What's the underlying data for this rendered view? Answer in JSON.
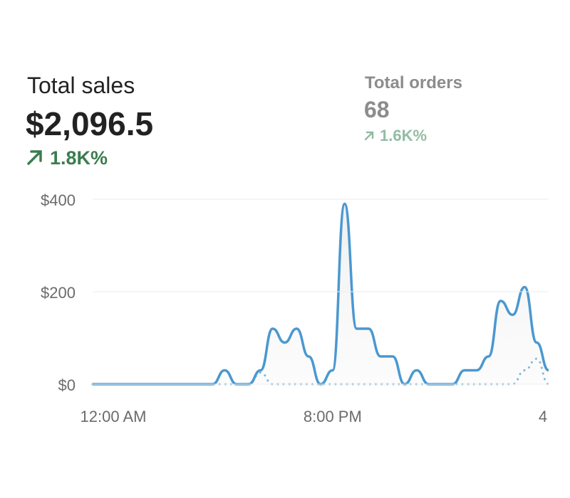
{
  "metrics": [
    {
      "label": "Total sales",
      "value": "$2,096.5",
      "change": "1.8K%"
    },
    {
      "label": "Total orders",
      "value": "68",
      "change": "1.6K%"
    }
  ],
  "chart_data": {
    "type": "line",
    "categories": [
      "12:00 AM",
      null,
      null,
      null,
      null,
      null,
      null,
      null,
      null,
      null,
      null,
      null,
      null,
      null,
      null,
      null,
      null,
      null,
      null,
      null,
      "8:00 PM",
      null,
      null,
      null,
      null,
      null,
      null,
      null,
      null,
      null,
      null,
      null,
      null,
      null,
      null,
      null,
      null,
      null,
      "4"
    ],
    "series": [
      {
        "color": "#4a98d0",
        "style": "solid",
        "values": [
          0,
          0,
          0,
          0,
          0,
          0,
          0,
          0,
          0,
          0,
          0,
          30,
          0,
          0,
          30,
          120,
          90,
          120,
          60,
          0,
          30,
          390,
          120,
          120,
          60,
          60,
          0,
          30,
          0,
          0,
          0,
          30,
          30,
          60,
          180,
          150,
          210,
          90,
          30
        ]
      },
      {
        "color": "#7fb8d2",
        "style": "dotted",
        "values": [
          0,
          0,
          0,
          0,
          0,
          0,
          0,
          0,
          0,
          0,
          0,
          0,
          0,
          0,
          25,
          0,
          0,
          0,
          0,
          0,
          0,
          0,
          0,
          0,
          0,
          0,
          0,
          0,
          0,
          0,
          0,
          0,
          0,
          0,
          0,
          0,
          30,
          55,
          0
        ]
      }
    ],
    "ylim": [
      0,
      400
    ],
    "yticks": [
      {
        "value": 0,
        "label": "$0"
      },
      {
        "value": 200,
        "label": "$200"
      },
      {
        "value": 400,
        "label": "$400"
      }
    ],
    "grid": true
  }
}
